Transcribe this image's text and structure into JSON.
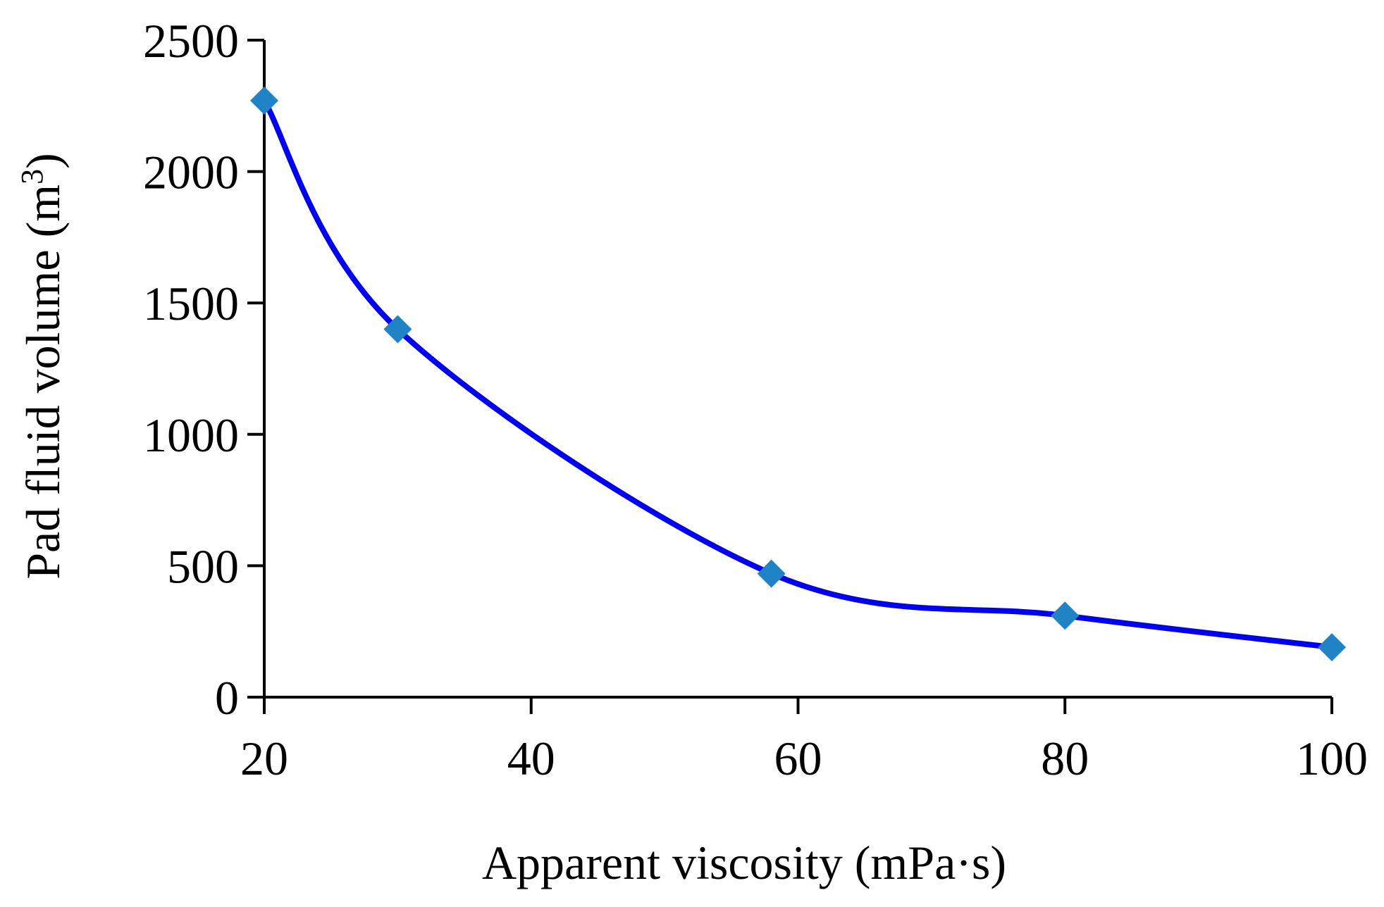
{
  "chart_data": {
    "type": "line",
    "title": "",
    "xlabel": "Apparent viscosity (mPa·s)",
    "ylabel": "Pad fluid volume (m3)",
    "ylabel_main": "Pad fluid volume (m",
    "ylabel_superscript": "3",
    "ylabel_close": ")",
    "xlim": [
      20,
      100
    ],
    "ylim": [
      0,
      2500
    ],
    "xticks": [
      20,
      40,
      60,
      80,
      100
    ],
    "yticks": [
      0,
      500,
      1000,
      1500,
      2000,
      2500
    ],
    "grid": false,
    "series": [
      {
        "name": "Pad fluid volume",
        "x": [
          20,
          30,
          58,
          80,
          100
        ],
        "y": [
          2270,
          1400,
          470,
          310,
          190
        ],
        "line_color": "#0000ee",
        "marker": "diamond",
        "marker_color": "#1f83c6",
        "smooth": true
      }
    ]
  }
}
